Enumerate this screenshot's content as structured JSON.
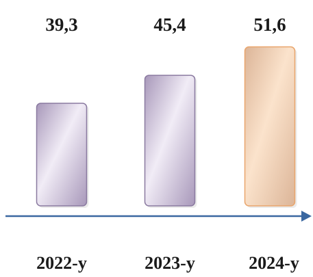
{
  "chart_data": {
    "type": "bar",
    "categories": [
      "2022-y",
      "2023-y",
      "2024-y"
    ],
    "values": [
      39.3,
      45.4,
      51.6
    ],
    "value_labels": [
      "39,3",
      "45,4",
      "51,6"
    ],
    "highlight_index": 2,
    "colors": {
      "bar_fill_light": "#f1ecf6",
      "bar_fill_dark": "#a898ba",
      "bar_stroke": "#8a7aa0",
      "highlight_fill_light": "#fbe3cc",
      "highlight_fill_dark": "#dcb598",
      "highlight_stroke": "#e9a56c",
      "axis": "#3a67a0",
      "text": "#1a1a1a"
    },
    "axis": {
      "arrow": true,
      "grid": false
    }
  }
}
